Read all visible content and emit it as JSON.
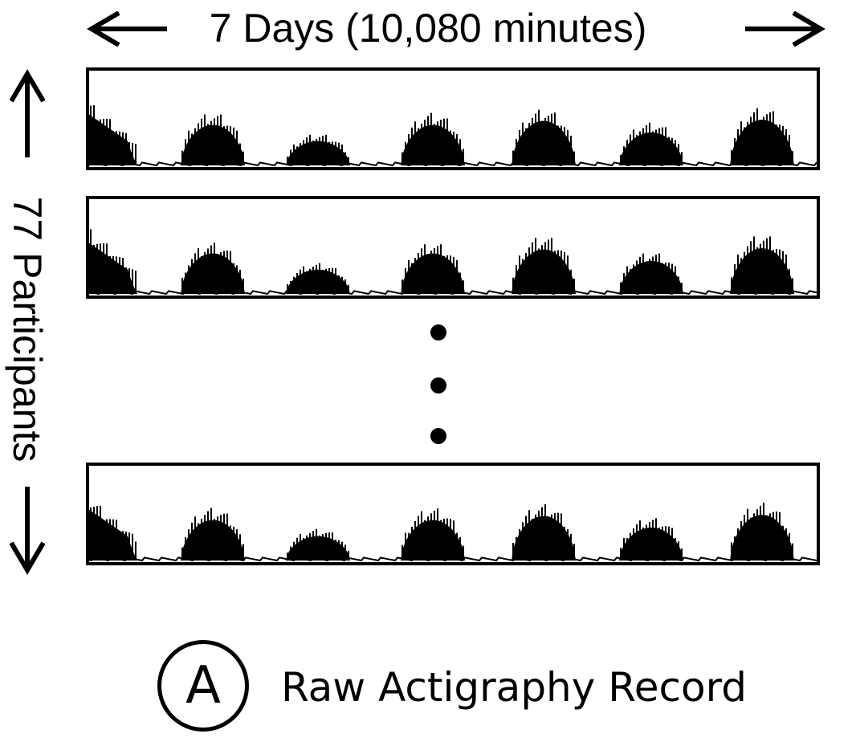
{
  "header": {
    "duration_label": "7 Days (10,080 minutes)"
  },
  "side": {
    "participants_label": "77 Participants"
  },
  "legend": {
    "badge_letter": "A",
    "caption": "Raw Actigraphy Record"
  },
  "panels": [
    {
      "heights": [
        0.88,
        0.7,
        0.42,
        0.7,
        0.77,
        0.57,
        0.79
      ]
    },
    {
      "heights": [
        0.88,
        0.7,
        0.42,
        0.7,
        0.77,
        0.57,
        0.79
      ]
    },
    {
      "heights": [
        0.88,
        0.7,
        0.42,
        0.7,
        0.77,
        0.57,
        0.79
      ]
    }
  ]
}
